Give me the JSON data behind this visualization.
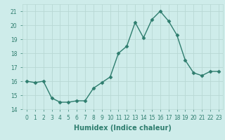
{
  "x": [
    0,
    1,
    2,
    3,
    4,
    5,
    6,
    7,
    8,
    9,
    10,
    11,
    12,
    13,
    14,
    15,
    16,
    17,
    18,
    19,
    20,
    21,
    22,
    23
  ],
  "y": [
    16.0,
    15.9,
    16.0,
    14.8,
    14.5,
    14.5,
    14.6,
    14.6,
    15.5,
    15.9,
    16.3,
    18.0,
    18.5,
    20.2,
    19.1,
    20.4,
    21.0,
    20.3,
    19.3,
    17.5,
    16.6,
    16.4,
    16.7,
    16.7
  ],
  "xlabel": "Humidex (Indice chaleur)",
  "line_color": "#2e7d6e",
  "marker": "D",
  "markersize": 2.5,
  "linewidth": 1.0,
  "bg_color": "#ceecea",
  "grid_color": "#b8d8d4",
  "ylim": [
    14,
    21.5
  ],
  "yticks": [
    14,
    15,
    16,
    17,
    18,
    19,
    20,
    21
  ],
  "xticks": [
    0,
    1,
    2,
    3,
    4,
    5,
    6,
    7,
    8,
    9,
    10,
    11,
    12,
    13,
    14,
    15,
    16,
    17,
    18,
    19,
    20,
    21,
    22,
    23
  ],
  "xtick_labels": [
    "0",
    "1",
    "2",
    "3",
    "4",
    "5",
    "6",
    "7",
    "8",
    "9",
    "10",
    "11",
    "12",
    "13",
    "14",
    "15",
    "16",
    "17",
    "18",
    "19",
    "20",
    "21",
    "22",
    "23"
  ],
  "tick_fontsize": 5.5,
  "xlabel_fontsize": 7.0
}
